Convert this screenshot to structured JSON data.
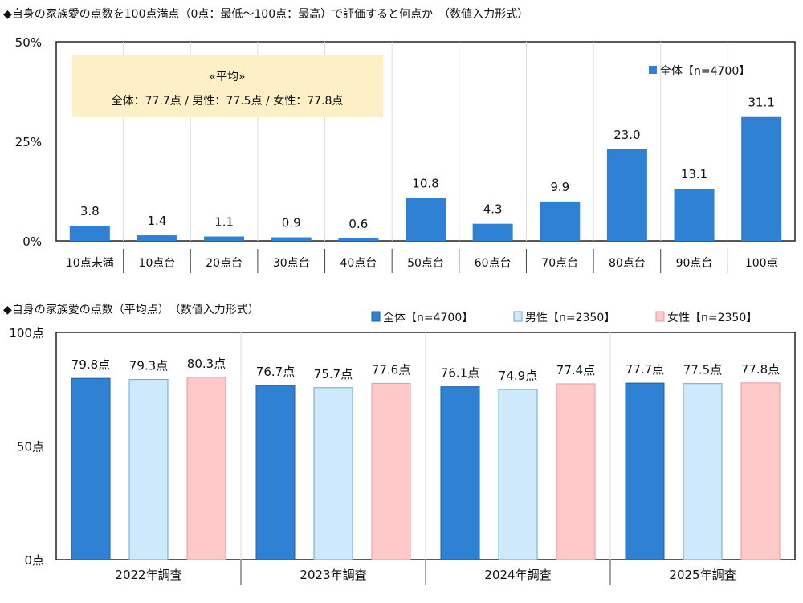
{
  "chart_data": [
    {
      "type": "bar",
      "title": "◆自身の家族愛の点数を100点満点（0点：最低〜100点：最高）で評価すると何点か　（数値入力形式）",
      "categories": [
        "10点未満",
        "10点台",
        "20点台",
        "30点台",
        "40点台",
        "50点台",
        "60点台",
        "70点台",
        "80点台",
        "90点台",
        "100点"
      ],
      "series": [
        {
          "name": "全体【n=4700】",
          "values": [
            3.8,
            1.4,
            1.1,
            0.9,
            0.6,
            10.8,
            4.3,
            9.9,
            23.0,
            13.1,
            31.1
          ],
          "color": "#2f81d4"
        }
      ],
      "ylim": [
        0,
        50
      ],
      "yticks": [
        "0%",
        "25%",
        "50%"
      ],
      "legend": "top-right",
      "grid": "vertical category separators",
      "annotation": {
        "heading": "«平均»",
        "text": "全体：77.7点 / 男性：77.5点 / 女性：77.8点",
        "color": "#fdf0c6"
      }
    },
    {
      "type": "bar",
      "title": "◆自身の家族愛の点数（平均点）　（数値入力形式）",
      "categories": [
        "2022年調査",
        "2023年調査",
        "2024年調査",
        "2025年調査"
      ],
      "series": [
        {
          "name": "全体【n=4700】",
          "values": [
            79.8,
            76.7,
            76.1,
            77.7
          ],
          "color": "#2f81d4",
          "border": "#1f5f9f"
        },
        {
          "name": "男性【n=2350】",
          "values": [
            79.3,
            75.7,
            74.9,
            77.5
          ],
          "color": "#cde9fb",
          "border": "#6aa6d0"
        },
        {
          "name": "女性【n=2350】",
          "values": [
            80.3,
            77.6,
            77.4,
            77.8
          ],
          "color": "#ffc9ca",
          "border": "#e09a9c"
        }
      ],
      "value_suffix": "点",
      "ylim": [
        0,
        100
      ],
      "yticks": [
        "0点",
        "50点",
        "100点"
      ],
      "legend": "top"
    }
  ]
}
